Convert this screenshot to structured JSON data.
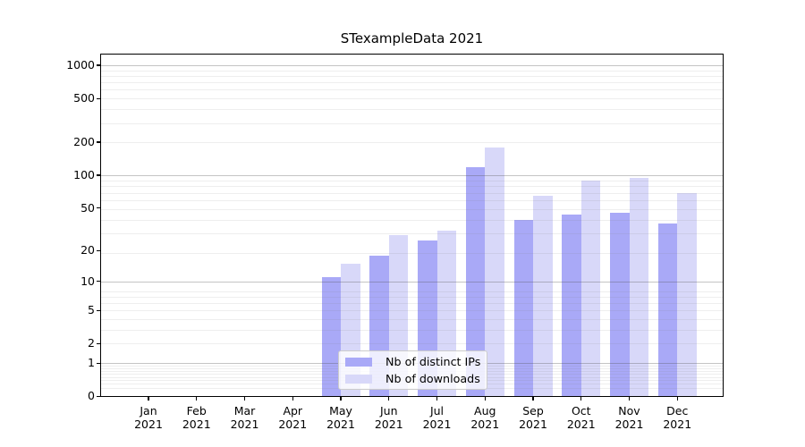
{
  "chart_data": {
    "type": "bar",
    "title": "STexampleData 2021",
    "categories": [
      {
        "month": "Jan",
        "year": "2021"
      },
      {
        "month": "Feb",
        "year": "2021"
      },
      {
        "month": "Mar",
        "year": "2021"
      },
      {
        "month": "Apr",
        "year": "2021"
      },
      {
        "month": "May",
        "year": "2021"
      },
      {
        "month": "Jun",
        "year": "2021"
      },
      {
        "month": "Jul",
        "year": "2021"
      },
      {
        "month": "Aug",
        "year": "2021"
      },
      {
        "month": "Sep",
        "year": "2021"
      },
      {
        "month": "Oct",
        "year": "2021"
      },
      {
        "month": "Nov",
        "year": "2021"
      },
      {
        "month": "Dec",
        "year": "2021"
      }
    ],
    "series": [
      {
        "name": "Nb of distinct IPs",
        "color": "#a9a9f7",
        "values": [
          0,
          0,
          0,
          0,
          11,
          18,
          25,
          119,
          39,
          43,
          45,
          36
        ]
      },
      {
        "name": "Nb of downloads",
        "color": "#d8d8f9",
        "values": [
          0,
          0,
          0,
          0,
          15,
          28,
          31,
          178,
          65,
          90,
          95,
          68
        ]
      }
    ],
    "yscale": "log1p",
    "yticks": [
      0,
      1,
      2,
      5,
      10,
      20,
      50,
      100,
      200,
      500,
      1000
    ],
    "ylim": [
      0,
      1270
    ],
    "xlabel": "",
    "ylabel": "",
    "grid": true,
    "legend_position": "lower center"
  },
  "colors": {
    "bar_distinct_ips": "#a9a9f7",
    "bar_downloads": "#d8d8f9",
    "grid_minor": "#ededed",
    "grid_major": "#c3c3c3",
    "spine": "#000000",
    "legend_border": "#cccccc",
    "background": "#ffffff"
  }
}
